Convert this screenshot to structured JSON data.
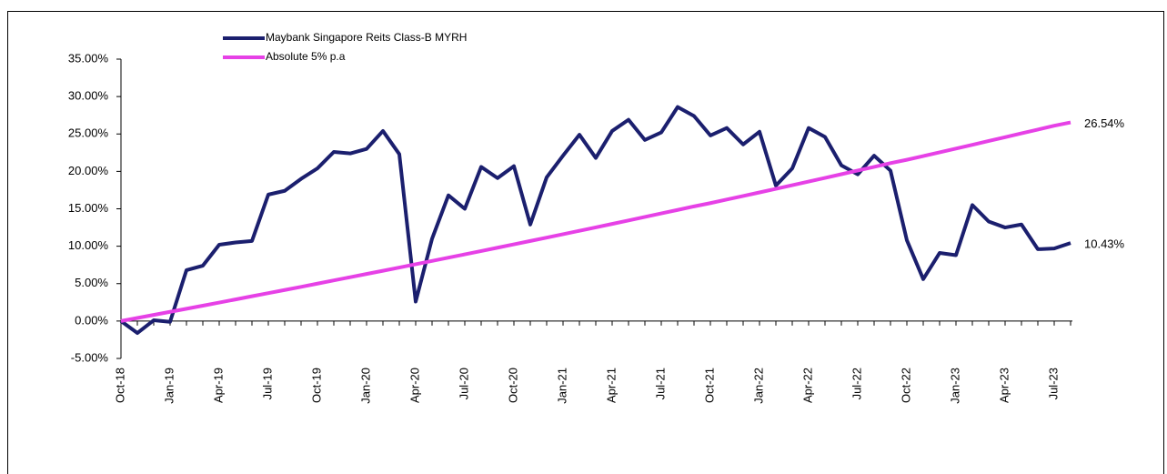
{
  "chart_data": {
    "type": "line",
    "categories": [
      "Oct-18",
      null,
      null,
      "Jan-19",
      null,
      null,
      "Apr-19",
      null,
      null,
      "Jul-19",
      null,
      null,
      "Oct-19",
      null,
      null,
      "Jan-20",
      null,
      null,
      "Apr-20",
      null,
      null,
      "Jul-20",
      null,
      null,
      "Oct-20",
      null,
      null,
      "Jan-21",
      null,
      null,
      "Apr-21",
      null,
      null,
      "Jul-21",
      null,
      null,
      "Oct-21",
      null,
      null,
      "Jan-22",
      null,
      null,
      "Apr-22",
      null,
      null,
      "Jul-22",
      null,
      null,
      "Oct-22",
      null,
      null,
      "Jan-23",
      null,
      null,
      "Apr-23",
      null,
      null,
      "Jul-23",
      null
    ],
    "series": [
      {
        "name": "Maybank Singapore Reits Class-B MYRH",
        "color": "#1b1f6e",
        "values": [
          0,
          -1.6,
          0.1,
          -0.1,
          6.8,
          7.4,
          10.2,
          10.5,
          10.7,
          16.9,
          17.4,
          19.0,
          20.4,
          22.6,
          22.4,
          23.0,
          25.4,
          22.3,
          2.6,
          11.0,
          16.8,
          15.0,
          20.6,
          19.1,
          20.7,
          12.9,
          19.2,
          22.1,
          24.9,
          21.8,
          25.4,
          26.9,
          24.2,
          25.2,
          28.6,
          27.4,
          24.8,
          25.8,
          23.6,
          25.3,
          18.1,
          20.4,
          25.8,
          24.6,
          20.8,
          19.6,
          22.1,
          20.1,
          10.8,
          5.6,
          9.1,
          8.8,
          15.5,
          13.3,
          12.5,
          12.9,
          9.6,
          9.7,
          10.43
        ],
        "value_labels": [
          null,
          null,
          null,
          null,
          null,
          null,
          null,
          null,
          null,
          null,
          null,
          null,
          null,
          null,
          null,
          null,
          null,
          null,
          null,
          null,
          null,
          null,
          null,
          null,
          null,
          null,
          null,
          null,
          null,
          null,
          null,
          null,
          null,
          null,
          null,
          null,
          null,
          null,
          null,
          null,
          null,
          null,
          null,
          null,
          null,
          null,
          null,
          null,
          null,
          null,
          null,
          null,
          null,
          null,
          null,
          null,
          null,
          null,
          "10.43%"
        ]
      },
      {
        "name": "Absolute 5% p.a",
        "color": "#e641e6",
        "values": [
          0,
          0.41,
          0.82,
          1.23,
          1.64,
          2.05,
          2.47,
          2.89,
          3.31,
          3.73,
          4.15,
          4.57,
          5.0,
          5.43,
          5.86,
          6.29,
          6.72,
          7.15,
          7.59,
          8.03,
          8.47,
          8.91,
          9.35,
          9.8,
          10.25,
          10.7,
          11.15,
          11.6,
          12.06,
          12.52,
          12.98,
          13.44,
          13.91,
          14.38,
          14.85,
          15.32,
          15.76,
          16.24,
          16.71,
          17.19,
          17.67,
          18.15,
          18.64,
          19.13,
          19.62,
          20.11,
          20.6,
          21.1,
          21.55,
          22.05,
          22.55,
          23.05,
          23.55,
          24.06,
          24.57,
          25.08,
          25.59,
          26.1,
          26.54
        ],
        "value_labels": [
          null,
          null,
          null,
          null,
          null,
          null,
          null,
          null,
          null,
          null,
          null,
          null,
          null,
          null,
          null,
          null,
          null,
          null,
          null,
          null,
          null,
          null,
          null,
          null,
          null,
          null,
          null,
          null,
          null,
          null,
          null,
          null,
          null,
          null,
          null,
          null,
          null,
          null,
          null,
          null,
          null,
          null,
          null,
          null,
          null,
          null,
          null,
          null,
          null,
          null,
          null,
          null,
          null,
          null,
          null,
          null,
          null,
          null,
          "26.54%"
        ]
      }
    ],
    "ylim": [
      -5,
      35
    ],
    "yticks": [
      {
        "value": -5,
        "label": "-5.00%"
      },
      {
        "value": 0,
        "label": "0.00%"
      },
      {
        "value": 5,
        "label": "5.00%"
      },
      {
        "value": 10,
        "label": "10.00%"
      },
      {
        "value": 15,
        "label": "15.00%"
      },
      {
        "value": 20,
        "label": "20.00%"
      },
      {
        "value": 25,
        "label": "25.00%"
      },
      {
        "value": 30,
        "label": "30.00%"
      },
      {
        "value": 35,
        "label": "35.00%"
      }
    ],
    "grid": false,
    "legend": "top-left"
  }
}
